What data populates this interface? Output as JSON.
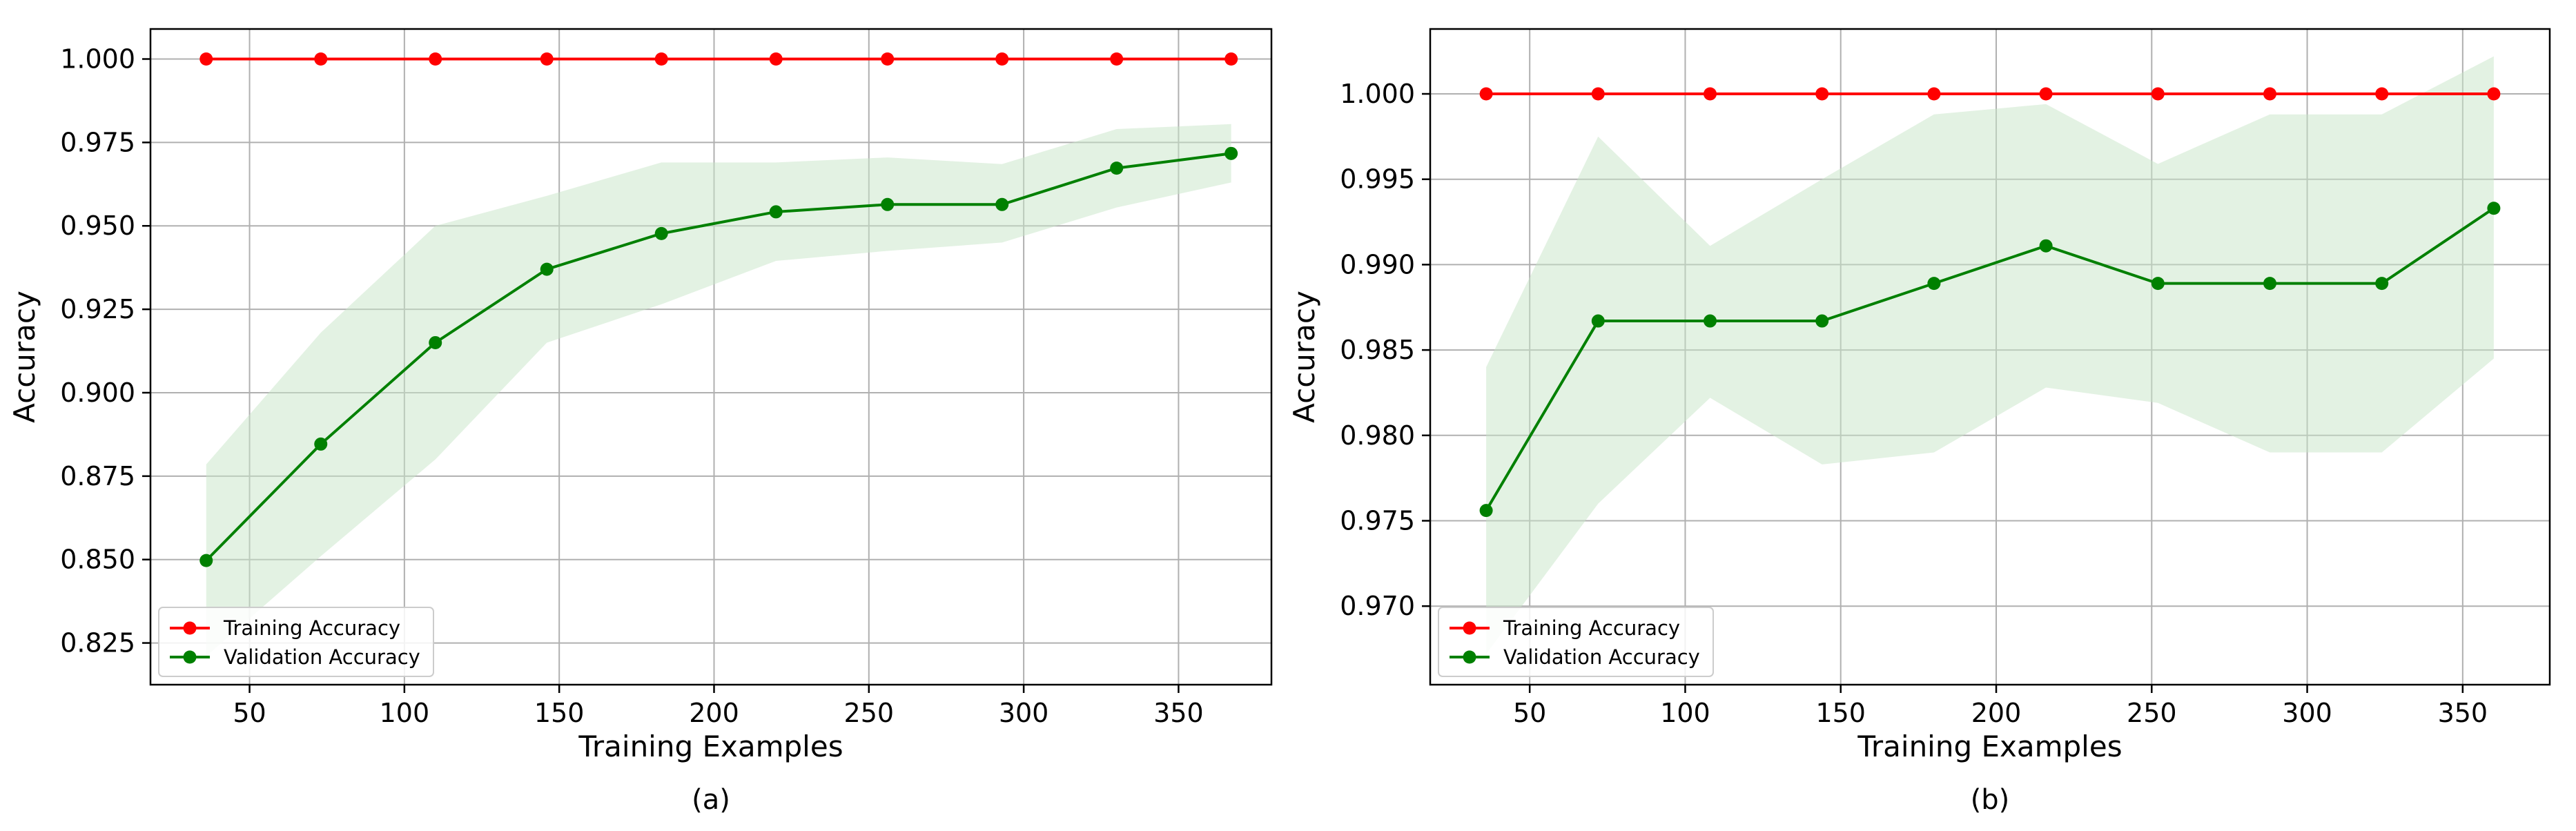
{
  "chart_data": [
    {
      "type": "line",
      "caption": "(a)",
      "xlabel": "Training Examples",
      "ylabel": "Accuracy",
      "xlim": [
        18,
        380
      ],
      "ylim": [
        0.8125,
        1.009
      ],
      "xticks": [
        50,
        100,
        150,
        200,
        250,
        300,
        350
      ],
      "xtick_labels": [
        "50",
        "100",
        "150",
        "200",
        "250",
        "300",
        "350"
      ],
      "yticks": [
        0.825,
        0.85,
        0.875,
        0.9,
        0.925,
        0.95,
        0.975,
        1.0
      ],
      "ytick_labels": [
        "0.825",
        "0.850",
        "0.875",
        "0.900",
        "0.925",
        "0.950",
        "0.975",
        "1.000"
      ],
      "grid": true,
      "legend_position": "lower-left",
      "x": [
        36,
        73,
        110,
        146,
        183,
        220,
        256,
        293,
        330,
        367
      ],
      "series": [
        {
          "name": "Training Accuracy",
          "color": "#ff0000",
          "marker": "circle",
          "values": [
            1.0,
            1.0,
            1.0,
            1.0,
            1.0,
            1.0,
            1.0,
            1.0,
            1.0,
            1.0
          ]
        },
        {
          "name": "Validation Accuracy",
          "color": "#008000",
          "marker": "circle",
          "values": [
            0.8497,
            0.8846,
            0.915,
            0.937,
            0.9477,
            0.9542,
            0.9564,
            0.9564,
            0.9673,
            0.9717
          ],
          "band_color": "#c8e6c8",
          "band_lower": [
            0.821,
            0.851,
            0.88,
            0.915,
            0.9265,
            0.9395,
            0.9425,
            0.945,
            0.9555,
            0.963
          ],
          "band_upper": [
            0.8785,
            0.918,
            0.95,
            0.959,
            0.969,
            0.969,
            0.9705,
            0.9685,
            0.979,
            0.9805
          ]
        }
      ]
    },
    {
      "type": "line",
      "caption": "(b)",
      "xlabel": "Training Examples",
      "ylabel": "Accuracy",
      "xlim": [
        18,
        378
      ],
      "ylim": [
        0.9654,
        1.0038
      ],
      "xticks": [
        50,
        100,
        150,
        200,
        250,
        300,
        350
      ],
      "xtick_labels": [
        "50",
        "100",
        "150",
        "200",
        "250",
        "300",
        "350"
      ],
      "yticks": [
        0.97,
        0.975,
        0.98,
        0.985,
        0.99,
        0.995,
        1.0
      ],
      "ytick_labels": [
        "0.970",
        "0.975",
        "0.980",
        "0.985",
        "0.990",
        "0.995",
        "1.000"
      ],
      "grid": true,
      "legend_position": "lower-left",
      "x": [
        36,
        72,
        108,
        144,
        180,
        216,
        252,
        288,
        324,
        360
      ],
      "series": [
        {
          "name": "Training Accuracy",
          "color": "#ff0000",
          "marker": "circle",
          "values": [
            1.0,
            1.0,
            1.0,
            1.0,
            1.0,
            1.0,
            1.0,
            1.0,
            1.0,
            1.0
          ]
        },
        {
          "name": "Validation Accuracy",
          "color": "#008000",
          "marker": "circle",
          "values": [
            0.9756,
            0.9867,
            0.9867,
            0.9867,
            0.9889,
            0.9911,
            0.9889,
            0.9889,
            0.9889,
            0.9933
          ],
          "band_color": "#c8e6c8",
          "band_lower": [
            0.9672,
            0.976,
            0.9822,
            0.9783,
            0.979,
            0.9828,
            0.9819,
            0.979,
            0.979,
            0.9845
          ],
          "band_upper": [
            0.984,
            0.9975,
            0.9911,
            0.995,
            0.9988,
            0.9994,
            0.9959,
            0.9988,
            0.9988,
            1.0022
          ]
        }
      ]
    }
  ]
}
